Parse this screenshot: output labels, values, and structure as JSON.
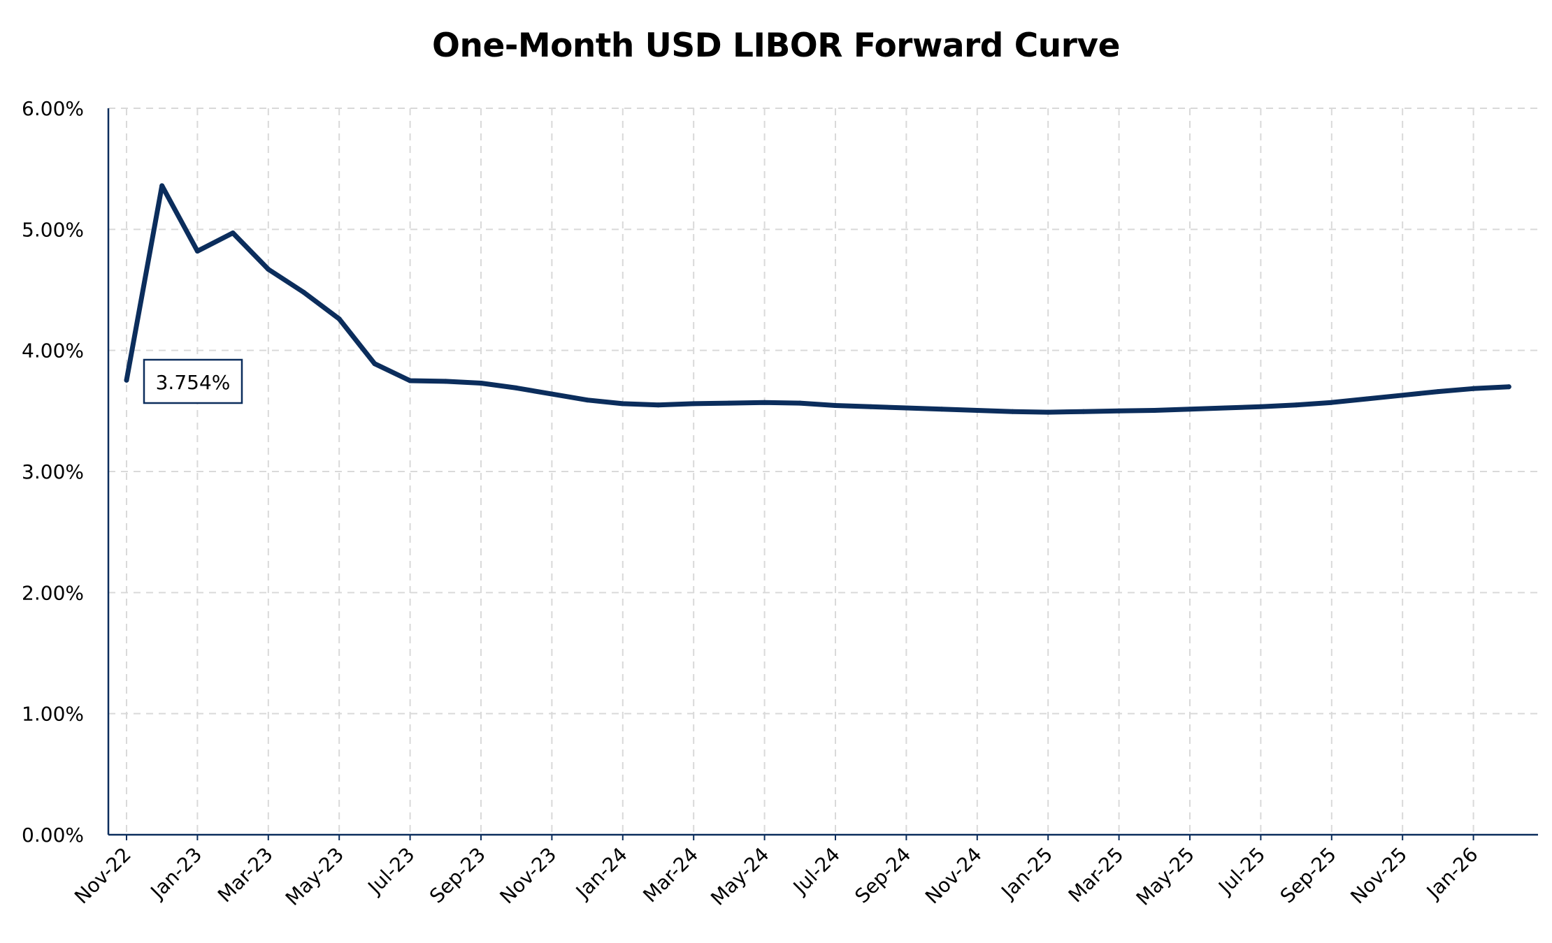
{
  "chart_data": {
    "type": "line",
    "title": "One-Month USD LIBOR Forward Curve",
    "xlabel": "",
    "ylabel": "",
    "y_tick_labels": [
      "0.00%",
      "1.00%",
      "2.00%",
      "3.00%",
      "4.00%",
      "5.00%",
      "6.00%"
    ],
    "ylim": [
      0,
      6
    ],
    "x_tick_labels": [
      "Nov-22",
      "Jan-23",
      "Mar-23",
      "May-23",
      "Jul-23",
      "Sep-23",
      "Nov-23",
      "Jan-24",
      "Mar-24",
      "May-24",
      "Jul-24",
      "Sep-24",
      "Nov-24",
      "Jan-25",
      "Mar-25",
      "May-25",
      "Jul-25",
      "Sep-25",
      "Nov-25",
      "Jan-26"
    ],
    "grid": true,
    "legend": "none",
    "series": [
      {
        "color": "#0b2d5c",
        "x": [
          "Nov-22",
          "Dec-22",
          "Jan-23",
          "Feb-23",
          "Mar-23",
          "Apr-23",
          "May-23",
          "Jun-23",
          "Jul-23",
          "Aug-23",
          "Sep-23",
          "Oct-23",
          "Nov-23",
          "Dec-23",
          "Jan-24",
          "Feb-24",
          "Mar-24",
          "Apr-24",
          "May-24",
          "Jun-24",
          "Jul-24",
          "Aug-24",
          "Sep-24",
          "Oct-24",
          "Nov-24",
          "Dec-24",
          "Jan-25",
          "Feb-25",
          "Mar-25",
          "Apr-25",
          "May-25",
          "Jun-25",
          "Jul-25",
          "Aug-25",
          "Sep-25",
          "Oct-25",
          "Nov-25",
          "Dec-25",
          "Jan-26",
          "Feb-26"
        ],
        "values": [
          3.754,
          5.36,
          4.82,
          4.97,
          4.67,
          4.48,
          4.26,
          3.89,
          3.75,
          3.745,
          3.73,
          3.69,
          3.64,
          3.59,
          3.56,
          3.55,
          3.56,
          3.565,
          3.57,
          3.565,
          3.545,
          3.535,
          3.525,
          3.515,
          3.505,
          3.495,
          3.49,
          3.495,
          3.5,
          3.505,
          3.515,
          3.525,
          3.535,
          3.55,
          3.57,
          3.6,
          3.63,
          3.66,
          3.685,
          3.7
        ]
      }
    ],
    "annotation": {
      "text": "3.754%",
      "point_index": 0
    }
  }
}
